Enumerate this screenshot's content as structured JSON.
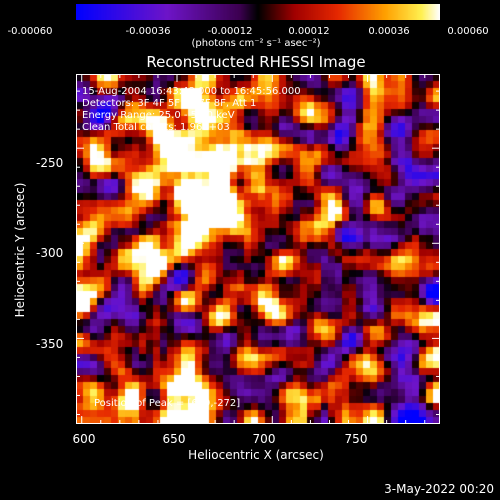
{
  "chart_data": {
    "type": "heatmap",
    "title": "Reconstructed RHESSI Image",
    "xlabel": "Heliocentric X (arcsec)",
    "ylabel": "Heliocentric Y (arcsec)",
    "xlim": [
      597,
      788
    ],
    "ylim": [
      -395,
      -211
    ],
    "x_ticks": [
      "600",
      "650",
      "700",
      "750"
    ],
    "y_ticks": [
      "-250",
      "-300",
      "-350"
    ],
    "colorbar": {
      "min": -0.0006,
      "max": 0.0006,
      "tick_labels": [
        "-0.00060",
        "-0.00036",
        "-0.00012",
        "0.00012",
        "0.00036",
        "0.00060"
      ],
      "units": "(photons cm⁻² s⁻¹ asec⁻²)"
    },
    "annotations": {
      "time_range": "15-Aug-2004 16:43:48.000 to 16:45:56.000",
      "detectors": "Detectors: 3F 4F 5F 6F 7F 8F, Att 1",
      "energy": "Energy Range: 25.0 - 50.0 keV",
      "clean": "Clean    Total counts: 1.96E+03",
      "peak": "Position of Peak = [669,-272]"
    },
    "peak_position": [
      669,
      -272
    ],
    "colors": {
      "low": "#0000ff",
      "mid": "#000000",
      "high": "#ffffff"
    }
  },
  "footer": {
    "timestamp": "3-May-2022 00:20"
  }
}
